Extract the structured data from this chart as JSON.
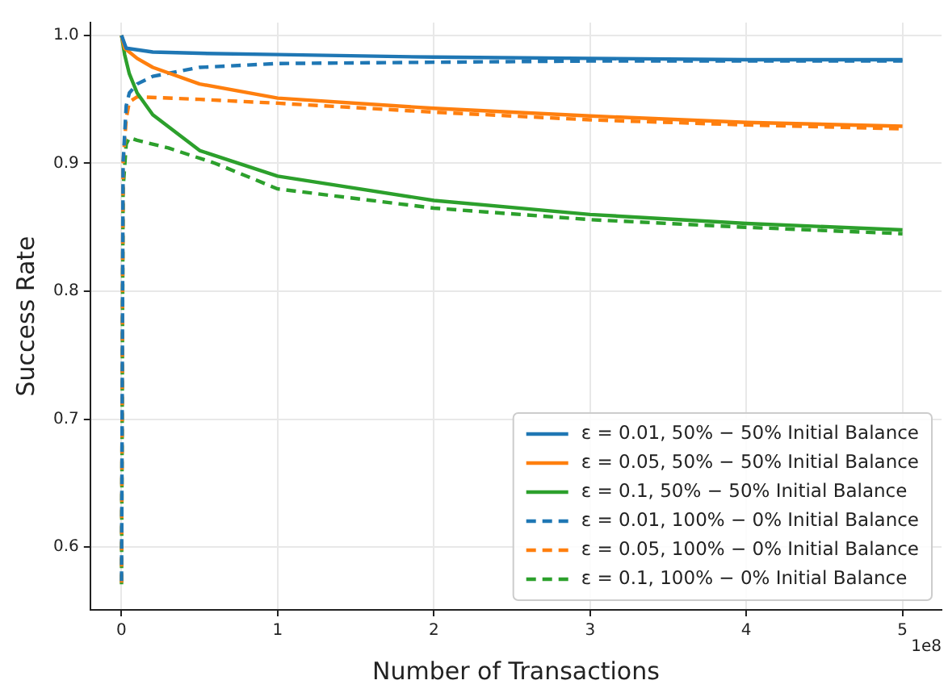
{
  "chart_data": {
    "type": "line",
    "xlabel": "Number of Transactions",
    "ylabel": "Success Rate",
    "annotations": [
      "1e8"
    ],
    "xlim": [
      -0.2,
      5.25
    ],
    "xticks": [
      0,
      1,
      2,
      3,
      4,
      5
    ],
    "ylim": [
      0.551,
      1.01
    ],
    "yticks": [
      0.6,
      0.7,
      0.8,
      0.9,
      {
        "value": 1,
        "label": "1.0"
      }
    ],
    "grid": true,
    "legend": "bottom right",
    "marker": "none",
    "series": [
      {
        "name": "ε = 0.01, 50% − 50% Initial Balance",
        "color": "#1f77b4",
        "line_style": "solid",
        "x": [
          0,
          0.03,
          0.2,
          0.5,
          1,
          2,
          3,
          4,
          5
        ],
        "values": [
          1.0,
          0.99,
          0.987,
          0.986,
          0.985,
          0.983,
          0.982,
          0.981,
          0.981
        ]
      },
      {
        "name": "ε = 0.05, 50% − 50% Initial Balance",
        "color": "#ff7f0e",
        "line_style": "solid",
        "x": [
          0,
          0.02,
          0.1,
          0.2,
          0.5,
          1,
          2,
          3,
          4,
          5
        ],
        "values": [
          1.0,
          0.99,
          0.982,
          0.975,
          0.962,
          0.951,
          0.943,
          0.937,
          0.932,
          0.929
        ]
      },
      {
        "name": "ε = 0.1, 50% − 50% Initial Balance",
        "color": "#2ca02c",
        "line_style": "solid",
        "x": [
          0,
          0.02,
          0.05,
          0.1,
          0.2,
          0.5,
          1,
          2,
          3,
          4,
          5
        ],
        "values": [
          1.0,
          0.985,
          0.97,
          0.955,
          0.938,
          0.91,
          0.89,
          0.871,
          0.86,
          0.853,
          0.848
        ]
      },
      {
        "name": "ε = 0.01, 100% − 0% Initial Balance",
        "color": "#1f77b4",
        "line_style": "dashed",
        "x": [
          0,
          0.01,
          0.03,
          0.05,
          0.1,
          0.2,
          0.5,
          1,
          2,
          3,
          5
        ],
        "values": [
          0.571,
          0.9,
          0.945,
          0.955,
          0.962,
          0.968,
          0.975,
          0.978,
          0.979,
          0.98,
          0.98
        ]
      },
      {
        "name": "ε = 0.05, 100% − 0% Initial Balance",
        "color": "#ff7f0e",
        "line_style": "dashed",
        "x": [
          0,
          0.01,
          0.03,
          0.05,
          0.1,
          0.5,
          1,
          2,
          3,
          4,
          5
        ],
        "values": [
          0.571,
          0.9,
          0.935,
          0.948,
          0.952,
          0.95,
          0.947,
          0.94,
          0.934,
          0.93,
          0.927
        ]
      },
      {
        "name": "ε = 0.1, 100% − 0% Initial Balance",
        "color": "#2ca02c",
        "line_style": "dashed",
        "x": [
          0,
          0.01,
          0.03,
          0.05,
          0.1,
          0.3,
          0.6,
          1,
          2,
          3,
          4,
          5
        ],
        "values": [
          0.571,
          0.88,
          0.915,
          0.92,
          0.918,
          0.912,
          0.9,
          0.88,
          0.865,
          0.856,
          0.85,
          0.845
        ]
      }
    ]
  }
}
